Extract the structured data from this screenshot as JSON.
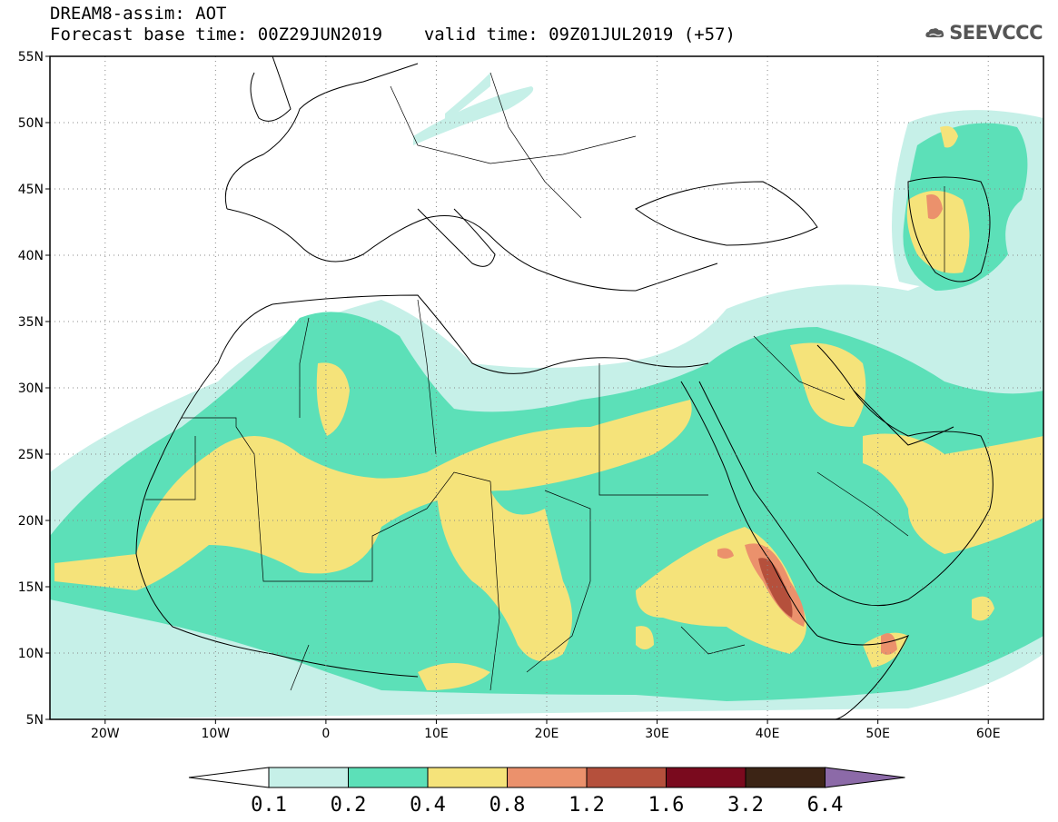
{
  "header": {
    "title": "DREAM8-assim: AOT",
    "base_time": "Forecast base time: 00Z29JUN2019",
    "valid_time": "valid time: 09Z01JUL2019 (+57)"
  },
  "logo": {
    "text": "SEEVCCC",
    "icon": "cloud-icon"
  },
  "map": {
    "lon_range": [
      -25,
      65
    ],
    "lat_range": [
      5,
      55
    ],
    "lat_ticks": [
      "55N",
      "50N",
      "45N",
      "40N",
      "35N",
      "30N",
      "25N",
      "20N",
      "15N",
      "10N",
      "5N"
    ],
    "lon_ticks": [
      "20W",
      "10W",
      "0",
      "10E",
      "20E",
      "30E",
      "40E",
      "50E",
      "60E"
    ],
    "grid": "dotted"
  },
  "colorbar": {
    "labels": [
      "0.1",
      "0.2",
      "0.4",
      "0.8",
      "1.2",
      "1.6",
      "3.2",
      "6.4"
    ],
    "colors": [
      "#ffffff",
      "#c6f0e8",
      "#5ce0b8",
      "#f5e37a",
      "#eb916c",
      "#b5503c",
      "#7a0a1e",
      "#3c2415",
      "#8c6aa8"
    ]
  }
}
